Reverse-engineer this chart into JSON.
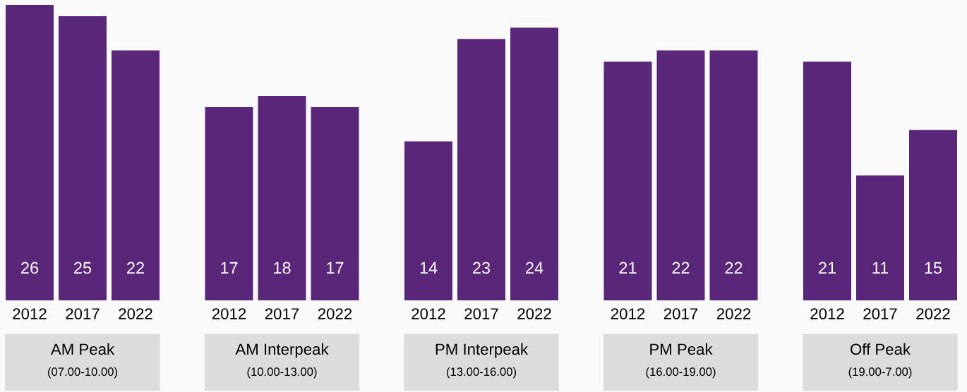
{
  "chart_data": {
    "type": "bar",
    "legend": false,
    "data_labels": true,
    "categories": [
      "AM Peak\n(07.00-10.00)",
      "AM Interpeak\n(10.00-13.00)",
      "PM Interpeak\n(13.00-16.00)",
      "PM Peak\n(16.00-19.00)",
      "Off Peak\n(19.00-7.00)"
    ],
    "series": [
      {
        "name": "2012",
        "color": "#5a2679",
        "values": [
          26,
          17,
          14,
          21,
          21
        ]
      },
      {
        "name": "2017",
        "color": "#5a2679",
        "values": [
          25,
          18,
          23,
          22,
          11
        ]
      },
      {
        "name": "2022",
        "color": "#5a2679",
        "values": [
          22,
          17,
          24,
          22,
          15
        ]
      }
    ]
  }
}
